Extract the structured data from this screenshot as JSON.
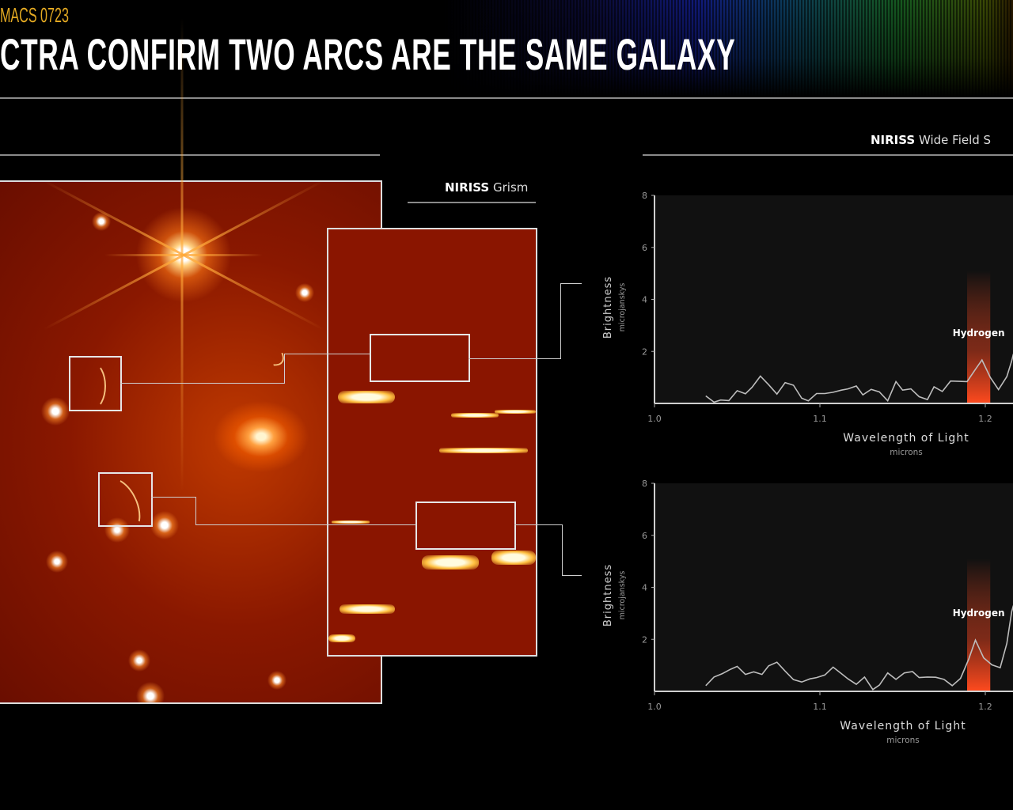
{
  "header": {
    "subtitle": "MACS 0723",
    "title": "CTRA CONFIRM TWO ARCS ARE THE SAME GALAXY"
  },
  "image_panel": {
    "grism_label_bold": "NIRISS",
    "grism_label_light": "Grism"
  },
  "spectra_panel": {
    "label_bold": "NIRISS",
    "label_light": "Wide Field S"
  },
  "colors": {
    "accent_title": "#e3a922",
    "line_highlight": "#f04a20",
    "plot_bg": "#111111",
    "series_line": "#bdbdbd"
  },
  "chart_data": [
    {
      "type": "line",
      "xlabel": "Wavelength of Light",
      "xunit": "microns",
      "ylabel": "Brightness",
      "yunit": "microjanskys",
      "xlim": [
        1.0,
        1.217
      ],
      "ylim": [
        0,
        8
      ],
      "xticks": [
        "1.0",
        "1.1",
        "1.2"
      ],
      "yticks": [
        "2",
        "4",
        "6",
        "8"
      ],
      "grid": false,
      "annotation": {
        "text": "Hydrogen",
        "band": [
          1.189,
          1.203
        ]
      },
      "x": [
        1.031,
        1.036,
        1.04,
        1.045,
        1.05,
        1.055,
        1.059,
        1.064,
        1.069,
        1.074,
        1.079,
        1.084,
        1.089,
        1.093,
        1.098,
        1.103,
        1.108,
        1.113,
        1.117,
        1.122,
        1.126,
        1.131,
        1.136,
        1.141,
        1.146,
        1.15,
        1.155,
        1.16,
        1.165,
        1.169,
        1.174,
        1.179,
        1.184,
        1.189,
        1.194,
        1.198,
        1.203,
        1.208,
        1.213,
        1.216,
        1.217
      ],
      "y": [
        0.29,
        0.05,
        0.13,
        0.11,
        0.49,
        0.37,
        0.62,
        1.05,
        0.72,
        0.36,
        0.8,
        0.7,
        0.2,
        0.1,
        0.38,
        0.38,
        0.43,
        0.51,
        0.56,
        0.67,
        0.33,
        0.54,
        0.44,
        0.1,
        0.84,
        0.51,
        0.56,
        0.26,
        0.15,
        0.64,
        0.46,
        0.86,
        0.85,
        0.84,
        1.31,
        1.67,
        1.0,
        0.53,
        1.03,
        1.64,
        1.9
      ]
    },
    {
      "type": "line",
      "xlabel": "Wavelength of Light",
      "xunit": "microns",
      "ylabel": "Brightness",
      "yunit": "microjanskys",
      "xlim": [
        1.0,
        1.217
      ],
      "ylim": [
        0,
        8
      ],
      "xticks": [
        "1.0",
        "1.1",
        "1.2"
      ],
      "yticks": [
        "2",
        "4",
        "6",
        "8"
      ],
      "grid": false,
      "annotation": {
        "text": "Hydrogen",
        "band": [
          1.189,
          1.203
        ]
      },
      "x": [
        1.031,
        1.036,
        1.041,
        1.046,
        1.05,
        1.055,
        1.06,
        1.065,
        1.069,
        1.074,
        1.079,
        1.084,
        1.089,
        1.094,
        1.098,
        1.103,
        1.108,
        1.113,
        1.117,
        1.122,
        1.127,
        1.132,
        1.136,
        1.141,
        1.146,
        1.151,
        1.156,
        1.16,
        1.165,
        1.17,
        1.175,
        1.18,
        1.185,
        1.19,
        1.194,
        1.199,
        1.204,
        1.209,
        1.213,
        1.216,
        1.217
      ],
      "y": [
        0.22,
        0.55,
        0.68,
        0.85,
        0.96,
        0.65,
        0.75,
        0.65,
        0.98,
        1.12,
        0.78,
        0.45,
        0.36,
        0.48,
        0.53,
        0.63,
        0.93,
        0.68,
        0.48,
        0.27,
        0.55,
        0.07,
        0.24,
        0.71,
        0.46,
        0.71,
        0.76,
        0.53,
        0.55,
        0.54,
        0.46,
        0.22,
        0.5,
        1.24,
        1.97,
        1.29,
        1.02,
        0.91,
        1.84,
        3.07,
        3.3
      ]
    }
  ]
}
